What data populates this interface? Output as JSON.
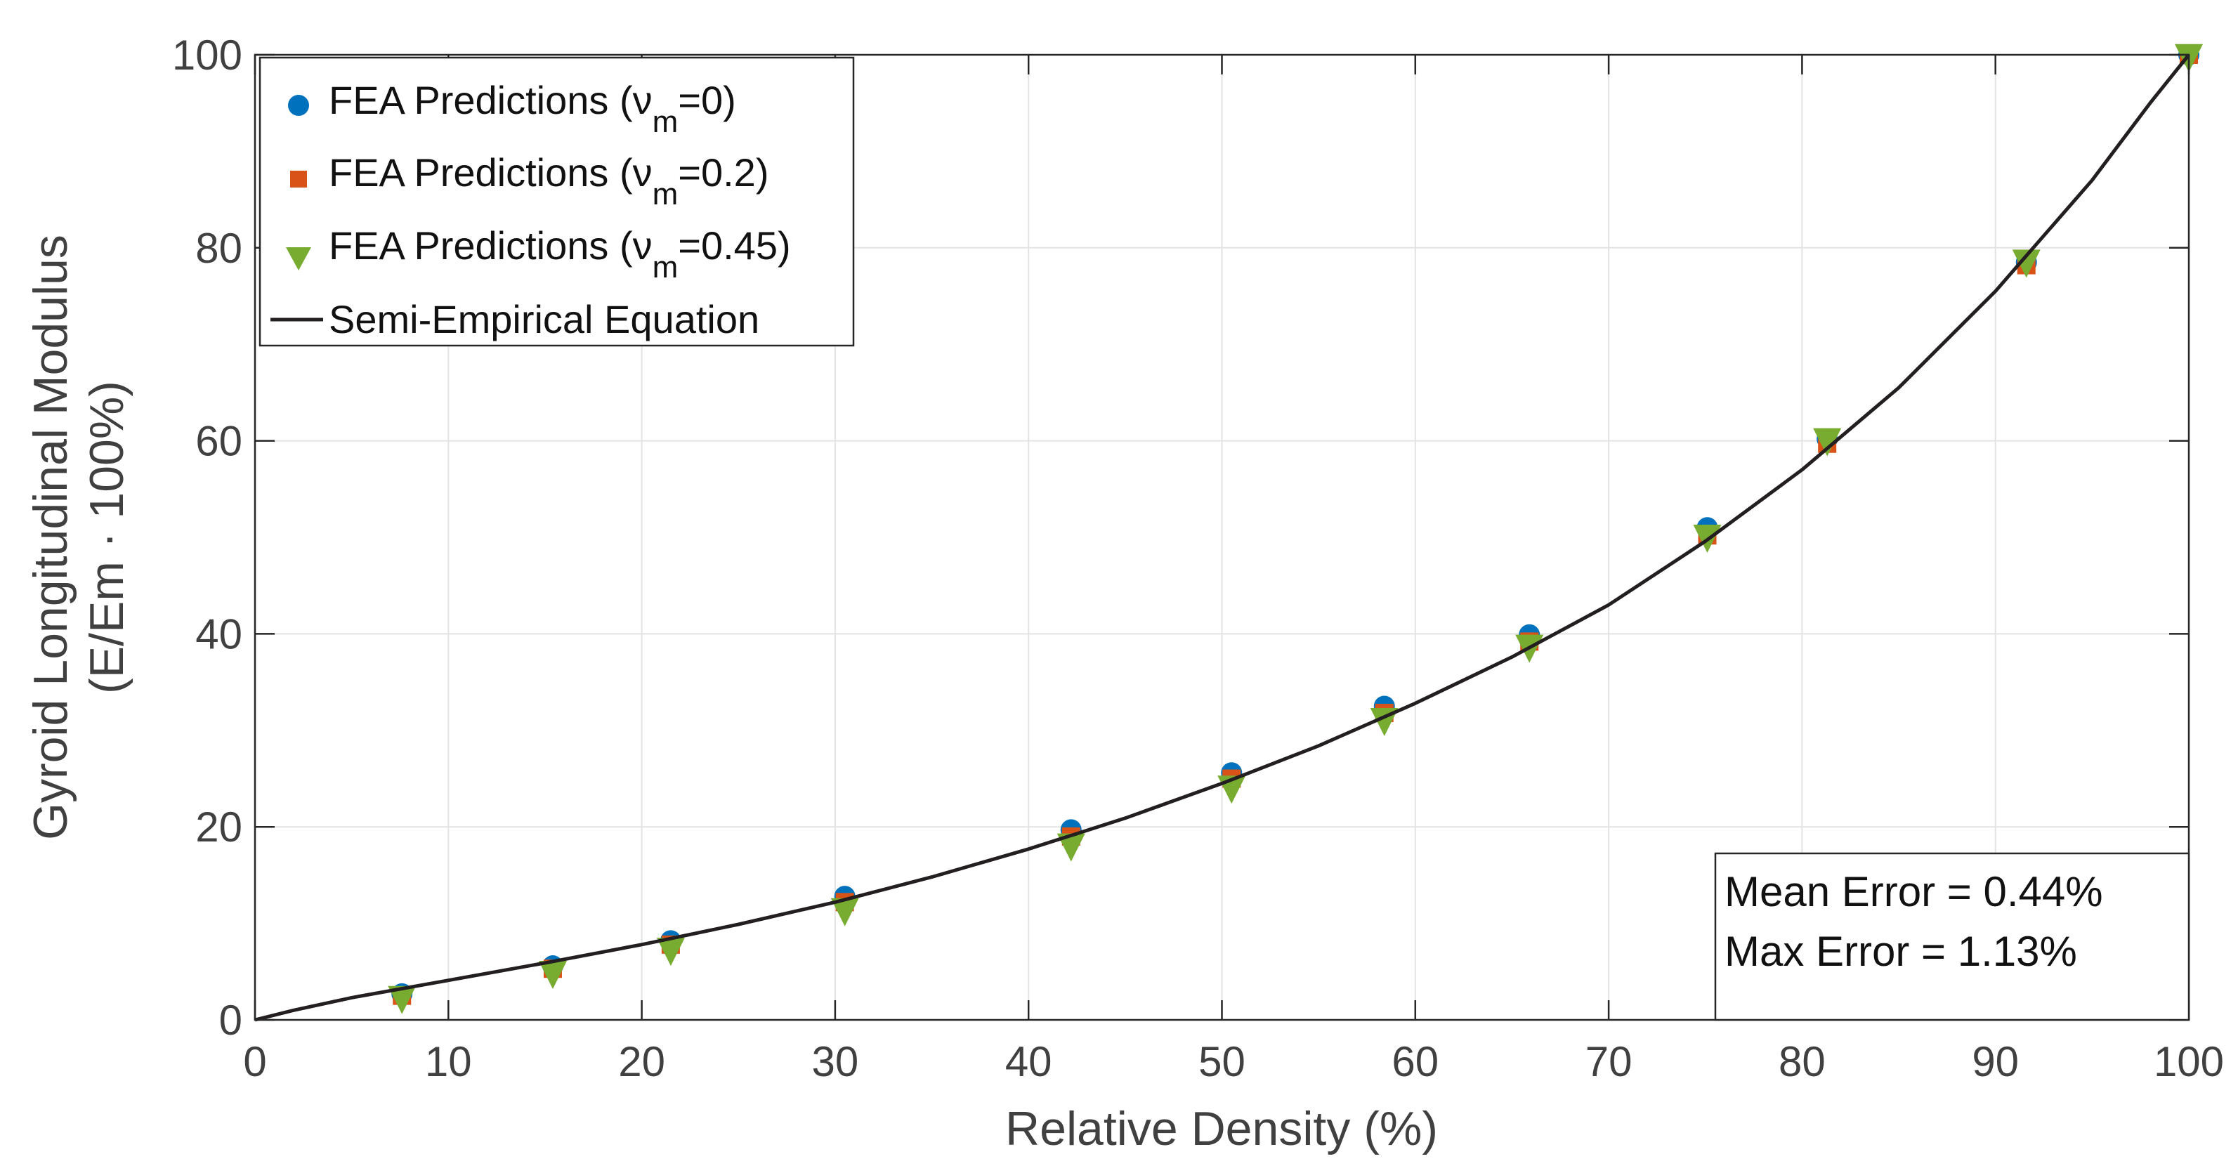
{
  "chart_data": {
    "type": "scatter",
    "xlabel": "Relative Density (%)",
    "ylabel_lines": [
      "Gyroid Longitudinal Modulus",
      "(E/Em · 100%)"
    ],
    "xlim": [
      0,
      100
    ],
    "ylim": [
      0,
      100
    ],
    "xticks": [
      "0",
      "10",
      "20",
      "30",
      "40",
      "50",
      "60",
      "70",
      "80",
      "90",
      "100"
    ],
    "yticks": [
      "0",
      "20",
      "40",
      "60",
      "80",
      "100"
    ],
    "grid": true,
    "legend_position": "top-left",
    "x": [
      7.6,
      15.4,
      21.5,
      30.5,
      42.2,
      50.5,
      58.4,
      65.9,
      75.1,
      81.3,
      91.6,
      100
    ],
    "series": [
      {
        "name": "FEA Predictions (νm=0)",
        "legend_main": "FEA Predictions (ν",
        "legend_sub": "m",
        "legend_tail": "=0)",
        "marker": "circle",
        "color": "#0072BD",
        "values": [
          2.7,
          5.6,
          8.2,
          12.8,
          19.7,
          25.6,
          32.5,
          39.9,
          51.0,
          60.2,
          78.5,
          100
        ]
      },
      {
        "name": "FEA Predictions (νm=0.2)",
        "legend_main": "FEA Predictions (ν",
        "legend_sub": "m",
        "legend_tail": "=0.2)",
        "marker": "square",
        "color": "#D95319",
        "values": [
          2.5,
          5.3,
          7.8,
          12.2,
          19.0,
          25.0,
          31.8,
          39.2,
          50.2,
          59.7,
          78.2,
          100
        ]
      },
      {
        "name": "FEA Predictions (νm=0.45)",
        "legend_main": "FEA Predictions (ν",
        "legend_sub": "m",
        "legend_tail": "=0.45)",
        "marker": "triangle-down",
        "color": "#77AC30",
        "values": [
          2.2,
          4.8,
          7.2,
          11.3,
          18.0,
          24.0,
          31.0,
          38.6,
          50.0,
          60.0,
          78.5,
          99.8
        ]
      }
    ],
    "line": {
      "name": "Semi-Empirical Equation",
      "color": "#231F20",
      "x": [
        0,
        2,
        5,
        10,
        15,
        20,
        25,
        30,
        35,
        40,
        45,
        50,
        55,
        60,
        65,
        70,
        75,
        80,
        85,
        90,
        95,
        98,
        100
      ],
      "y": [
        0,
        1.0,
        2.3,
        4.1,
        5.9,
        7.8,
        9.9,
        12.2,
        14.8,
        17.7,
        20.9,
        24.5,
        28.4,
        32.8,
        37.6,
        43.0,
        49.6,
        57.0,
        65.5,
        75.5,
        87.0,
        95.0,
        100
      ]
    },
    "annotation": [
      "Mean Error = 0.44%",
      "Max Error = 1.13%"
    ]
  }
}
